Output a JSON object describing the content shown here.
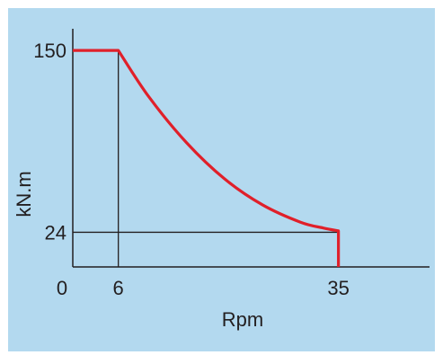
{
  "colors": {
    "background": "#b3d9ef",
    "frame": "#ffffff",
    "axis": "#231f20",
    "curve": "#e0202a"
  },
  "chart_data": {
    "type": "line",
    "xlabel": "Rpm",
    "ylabel": "kN.m",
    "xlim": [
      0,
      47
    ],
    "ylim": [
      0,
      165
    ],
    "grid": false,
    "x_ticks": [
      "0",
      "6",
      "35"
    ],
    "y_ticks": [
      "150",
      "24"
    ],
    "series": [
      {
        "x": [
          0,
          6,
          10,
          15,
          20,
          25,
          30,
          33,
          35,
          35
        ],
        "y": [
          150,
          150,
          118,
          86,
          61,
          43,
          31,
          27,
          25,
          0
        ]
      }
    ],
    "reference_lines": [
      {
        "from": [
          6,
          150
        ],
        "to": [
          6,
          0
        ]
      },
      {
        "from": [
          0,
          24
        ],
        "to": [
          35,
          24
        ]
      }
    ]
  }
}
